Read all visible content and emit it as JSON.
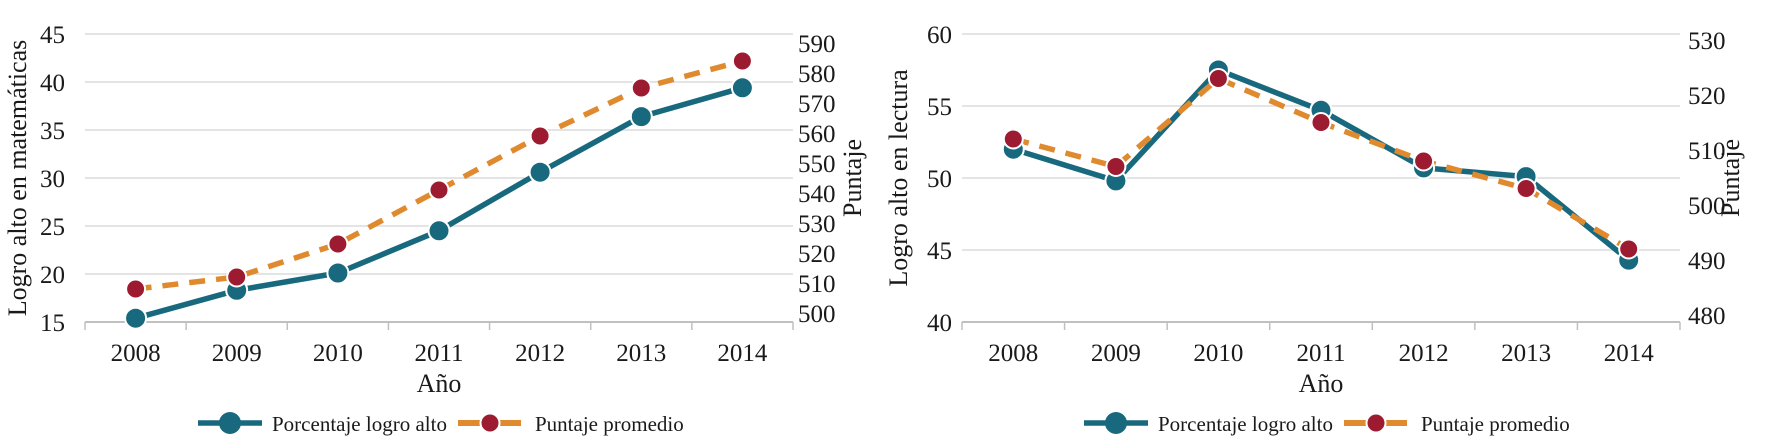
{
  "page": {
    "background": "#FFFFFF",
    "description": "Two dual-axis line charts: high achievement percentage and average score by year, for math and reading"
  },
  "colors": {
    "teal": "#19697E",
    "orange": "#E08A2F",
    "red": "#9D1B31",
    "grid": "#DCDCDC",
    "axis": "#C0C0C0",
    "text": "#1A1A1A",
    "marker_rim": "#FFFFFF"
  },
  "legend": {
    "items": [
      {
        "label": "Porcentaje logro alto",
        "swatch": "teal-solid-line-with-dot"
      },
      {
        "label": "Puntaje promedio",
        "swatch": "orange-dashed-line-with-red-dot"
      }
    ],
    "position": "bottom"
  },
  "chart_data": [
    {
      "type": "line",
      "title": "",
      "xlabel": "Año",
      "ylabel_left": "Logro alto en matemáticas",
      "ylabel_right": "Puntaje",
      "categories": [
        "2008",
        "2009",
        "2010",
        "2011",
        "2012",
        "2013",
        "2014"
      ],
      "left_axis": {
        "min": 15,
        "max": 45,
        "ticks": [
          15,
          20,
          25,
          30,
          35,
          40,
          45
        ]
      },
      "right_axis": {
        "min": 500,
        "max": 590,
        "ticks": [
          500,
          510,
          520,
          530,
          540,
          550,
          560,
          570,
          580,
          590
        ]
      },
      "grid": true,
      "legend_position": "bottom",
      "series": [
        {
          "name": "Porcentaje logro alto",
          "axis": "left",
          "line": "solid",
          "color_key": "teal",
          "marker_color_key": "teal",
          "values": [
            15.4,
            18.3,
            20.1,
            24.5,
            30.6,
            36.4,
            39.4
          ]
        },
        {
          "name": "Puntaje promedio",
          "axis": "right",
          "line": "dashed",
          "color_key": "orange",
          "marker_color_key": "red",
          "values": [
            508,
            512,
            523,
            541,
            559,
            575,
            584
          ]
        }
      ]
    },
    {
      "type": "line",
      "title": "",
      "xlabel": "Año",
      "ylabel_left": "Logro alto en lectura",
      "ylabel_right": "Puntaje",
      "categories": [
        "2008",
        "2009",
        "2010",
        "2011",
        "2012",
        "2013",
        "2014"
      ],
      "left_axis": {
        "min": 40,
        "max": 60,
        "ticks": [
          40,
          45,
          50,
          55,
          60
        ]
      },
      "right_axis": {
        "min": 480,
        "max": 530,
        "ticks": [
          480,
          490,
          500,
          510,
          520,
          530
        ]
      },
      "grid": true,
      "legend_position": "bottom",
      "series": [
        {
          "name": "Porcentaje logro alto",
          "axis": "left",
          "line": "solid",
          "color_key": "teal",
          "marker_color_key": "teal",
          "values": [
            52.0,
            49.8,
            57.5,
            54.7,
            50.7,
            50.1,
            44.3
          ]
        },
        {
          "name": "Puntaje promedio",
          "axis": "right",
          "line": "dashed",
          "color_key": "orange",
          "marker_color_key": "red",
          "values": [
            512,
            507,
            523,
            515,
            508,
            503,
            492
          ]
        }
      ]
    }
  ]
}
